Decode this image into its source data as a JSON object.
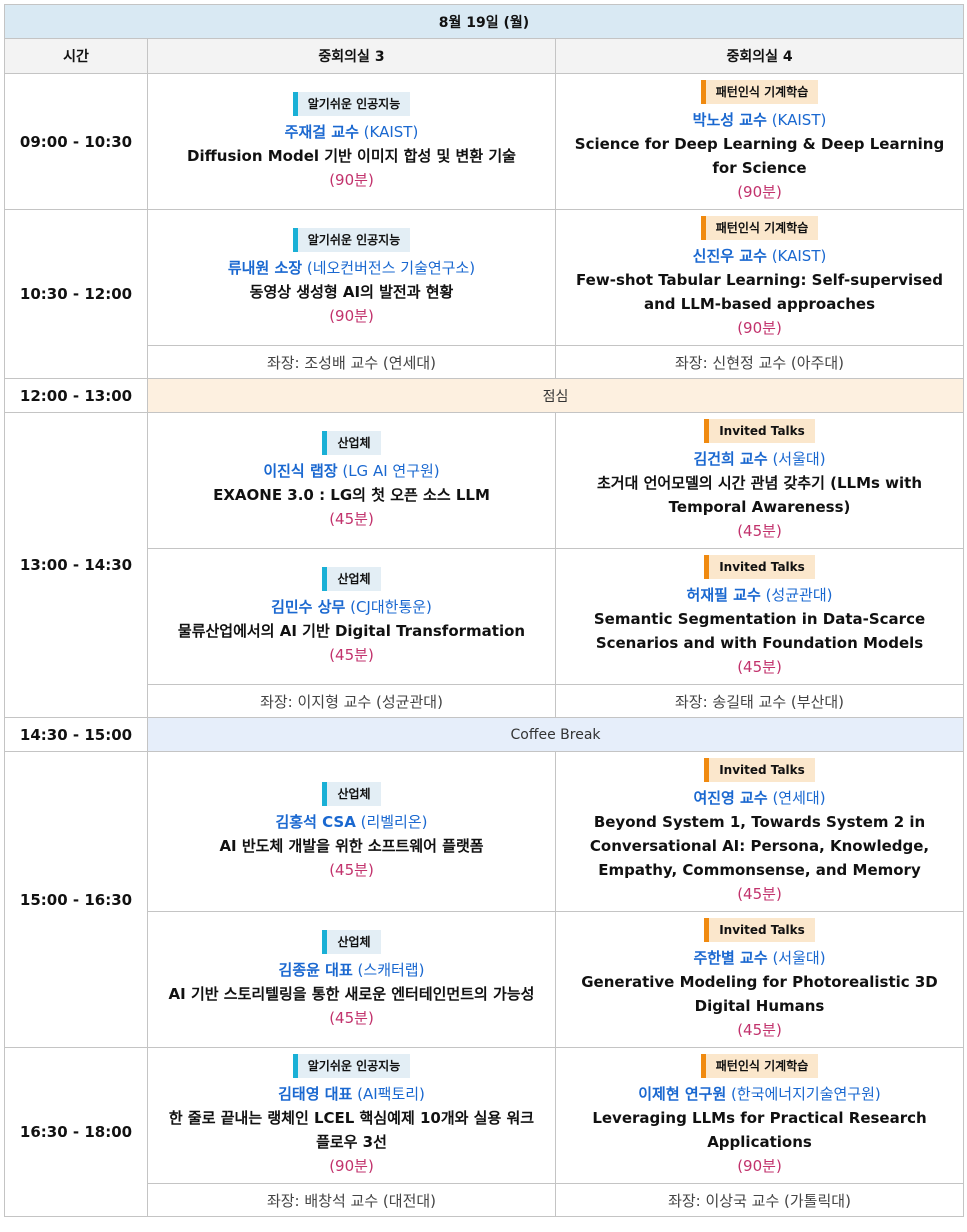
{
  "date": "8월 19일 (월)",
  "headers": {
    "time": "시간",
    "room3": "중회의실 3",
    "room4": "중회의실 4"
  },
  "colors": {
    "ai_tag_bar": "#1ab0d6",
    "pr_tag_bar": "#f08a10",
    "speaker": "#1a68d0",
    "duration": "#c2326c",
    "lunch_bg": "#fdf0e0",
    "coffee_bg": "#e6eefa",
    "header_bg": "#d9e9f3"
  },
  "slots": {
    "s1": {
      "time": "09:00 - 10:30",
      "r3": {
        "tag": "알기쉬운 인공지능",
        "name": "주재걸 교수",
        "org": "(KAIST)",
        "title": "Diffusion Model 기반 이미지 합성 및 변환 기술",
        "dur": "(90분)"
      },
      "r4": {
        "tag": "패턴인식 기계학습",
        "name": "박노성 교수",
        "org": "(KAIST)",
        "title": "Science for Deep Learning & Deep Learning for Science",
        "dur": "(90분)"
      }
    },
    "s2": {
      "time": "10:30 - 12:00",
      "r3": {
        "tag": "알기쉬운 인공지능",
        "name": "류내원 소장",
        "org": "(네오컨버전스 기술연구소)",
        "title": "동영상 생성형 AI의 발전과 현황",
        "dur": "(90분)"
      },
      "r4": {
        "tag": "패턴인식 기계학습",
        "name": "신진우 교수",
        "org": "(KAIST)",
        "title": "Few-shot Tabular Learning: Self-supervised and LLM-based approaches",
        "dur": "(90분)"
      },
      "chair3": "좌장: 조성배 교수 (연세대)",
      "chair4": "좌장: 신현정 교수 (아주대)"
    },
    "lunch": {
      "time": "12:00 - 13:00",
      "label": "점심"
    },
    "s3": {
      "time": "13:00 - 14:30",
      "a3": {
        "tag": "산업체",
        "name": "이진식 랩장",
        "org": "(LG AI 연구원)",
        "title": "EXAONE 3.0 : LG의 첫 오픈 소스 LLM",
        "dur": "(45분)"
      },
      "a4": {
        "tag": "Invited Talks",
        "name": "김건희 교수",
        "org": "(서울대)",
        "title": "초거대 언어모델의 시간 관념 갖추기 (LLMs with Temporal Awareness)",
        "dur": "(45분)"
      },
      "b3": {
        "tag": "산업체",
        "name": "김민수 상무",
        "org": "(CJ대한통운)",
        "title": "물류산업에서의 AI 기반 Digital Transformation",
        "dur": "(45분)"
      },
      "b4": {
        "tag": "Invited Talks",
        "name": "허재필 교수",
        "org": "(성균관대)",
        "title": "Semantic Segmentation in Data-Scarce Scenarios and with Foundation Models",
        "dur": "(45분)"
      },
      "chair3": "좌장: 이지형 교수 (성균관대)",
      "chair4": "좌장: 송길태 교수 (부산대)"
    },
    "coffee": {
      "time": "14:30 - 15:00",
      "label": "Coffee Break"
    },
    "s4": {
      "time": "15:00 - 16:30",
      "a3": {
        "tag": "산업체",
        "name": "김홍석 CSA",
        "org": "(리벨리온)",
        "title": "AI 반도체 개발을 위한 소프트웨어 플랫폼",
        "dur": "(45분)"
      },
      "a4": {
        "tag": "Invited Talks",
        "name": "여진영 교수",
        "org": "(연세대)",
        "title": "Beyond System 1, Towards System 2 in Conversational AI: Persona, Knowledge, Empathy, Commonsense, and Memory",
        "dur": "(45분)"
      },
      "b3": {
        "tag": "산업체",
        "name": "김종윤 대표",
        "org": "(스캐터랩)",
        "title": "AI 기반 스토리텔링을 통한 새로운 엔터테인먼트의 가능성",
        "dur": "(45분)"
      },
      "b4": {
        "tag": "Invited Talks",
        "name": "주한별 교수",
        "org": "(서울대)",
        "title": "Generative Modeling for Photorealistic 3D Digital Humans",
        "dur": "(45분)"
      }
    },
    "s5": {
      "time": "16:30 - 18:00",
      "r3": {
        "tag": "알기쉬운 인공지능",
        "name": "김태영 대표",
        "org": "(AI팩토리)",
        "title": "한 줄로 끝내는 랭체인 LCEL 핵심예제 10개와 실용 워크플로우 3선",
        "dur": "(90분)"
      },
      "r4": {
        "tag": "패턴인식 기계학습",
        "name": "이제현 연구원",
        "org": "(한국에너지기술연구원)",
        "title": "Leveraging LLMs for Practical Research Applications",
        "dur": "(90분)"
      },
      "chair3": "좌장: 배창석 교수 (대전대)",
      "chair4": "좌장: 이상국 교수 (가톨릭대)"
    }
  }
}
